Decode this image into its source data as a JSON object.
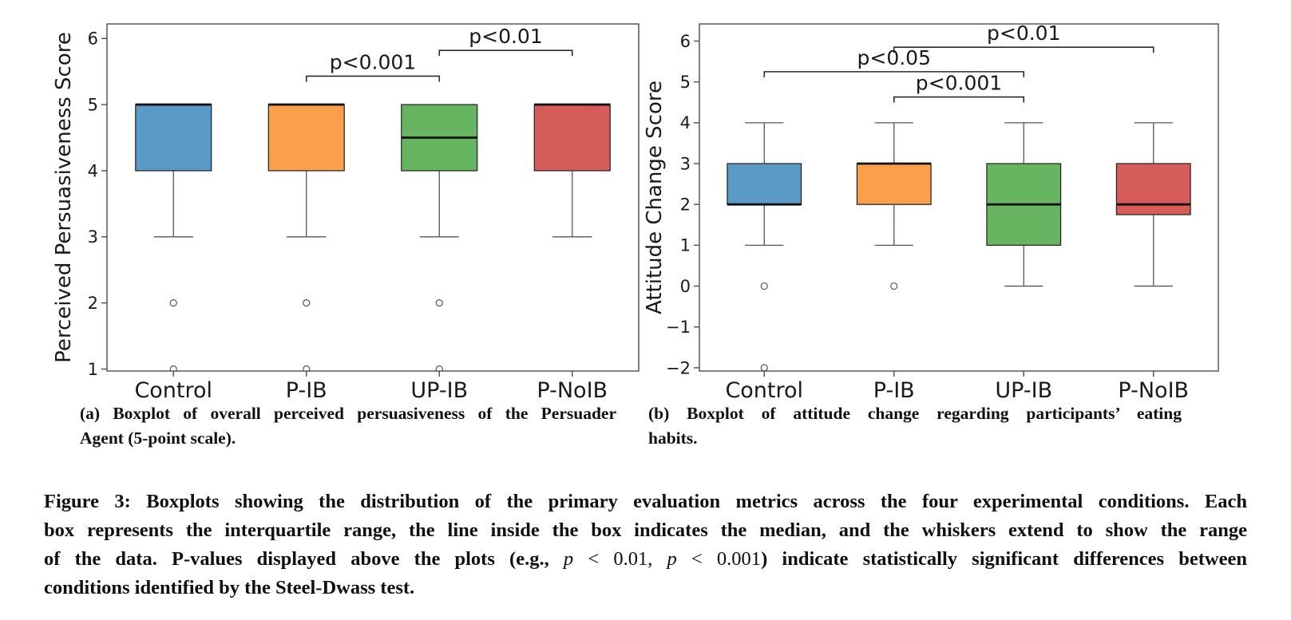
{
  "colors": {
    "blue": "#5b99c6",
    "orange": "#fba04a",
    "green": "#67b561",
    "red": "#d65c5a",
    "box_edge": "#2b2b2b",
    "median": "#111111",
    "whisker": "#555555",
    "frame": "#4d4d4d",
    "text": "#1a1a1a",
    "bracket": "#2a2a2a"
  },
  "chart_data": [
    {
      "type": "boxplot",
      "title": "",
      "ylabel": "Perceived Persuasiveness Score",
      "xlabel": "",
      "ylim": [
        0.97,
        6.22
      ],
      "yticks": [
        1,
        2,
        3,
        4,
        5,
        6
      ],
      "grid": false,
      "categories": [
        "Control",
        "P-IB",
        "UP-IB",
        "P-NoIB"
      ],
      "series": [
        {
          "name": "Control",
          "color_key": "blue",
          "q1": 4,
          "median": 5,
          "q3": 5,
          "whisker_low": 3,
          "whisker_high": 5,
          "outliers": [
            2,
            1
          ]
        },
        {
          "name": "P-IB",
          "color_key": "orange",
          "q1": 4,
          "median": 5,
          "q3": 5,
          "whisker_low": 3,
          "whisker_high": 5,
          "outliers": [
            2,
            1
          ]
        },
        {
          "name": "UP-IB",
          "color_key": "green",
          "q1": 4,
          "median": 4.5,
          "q3": 5,
          "whisker_low": 3,
          "whisker_high": 5,
          "outliers": [
            2,
            1
          ]
        },
        {
          "name": "P-NoIB",
          "color_key": "red",
          "q1": 4,
          "median": 5,
          "q3": 5,
          "whisker_low": 3,
          "whisker_high": 5,
          "outliers": []
        }
      ],
      "significance": [
        {
          "from": "P-IB",
          "to": "UP-IB",
          "y": 5.43,
          "label": "p<0.001"
        },
        {
          "from": "UP-IB",
          "to": "P-NoIB",
          "y": 5.82,
          "label": "p<0.01"
        }
      ]
    },
    {
      "type": "boxplot",
      "title": "",
      "ylabel": "Attitude Change Score",
      "xlabel": "",
      "ylim": [
        -2.08,
        6.42
      ],
      "yticks": [
        -2,
        -1,
        0,
        1,
        2,
        3,
        4,
        5,
        6
      ],
      "grid": false,
      "categories": [
        "Control",
        "P-IB",
        "UP-IB",
        "P-NoIB"
      ],
      "series": [
        {
          "name": "Control",
          "color_key": "blue",
          "q1": 2,
          "median": 2,
          "q3": 3,
          "whisker_low": 1,
          "whisker_high": 4,
          "outliers": [
            0,
            -2
          ]
        },
        {
          "name": "P-IB",
          "color_key": "orange",
          "q1": 2,
          "median": 3,
          "q3": 3,
          "whisker_low": 1,
          "whisker_high": 4,
          "outliers": [
            0
          ]
        },
        {
          "name": "UP-IB",
          "color_key": "green",
          "q1": 1,
          "median": 2,
          "q3": 3,
          "whisker_low": 0,
          "whisker_high": 4,
          "outliers": []
        },
        {
          "name": "P-NoIB",
          "color_key": "red",
          "q1": 1.75,
          "median": 2,
          "q3": 3,
          "whisker_low": 0,
          "whisker_high": 4,
          "outliers": []
        }
      ],
      "significance": [
        {
          "from": "P-IB",
          "to": "P-NoIB",
          "y": 5.85,
          "label": "p<0.01"
        },
        {
          "from": "Control",
          "to": "UP-IB",
          "y": 5.25,
          "label": "p<0.05"
        },
        {
          "from": "P-IB",
          "to": "UP-IB",
          "y": 4.63,
          "label": "p<0.001"
        }
      ]
    }
  ],
  "captions": {
    "a_line1": "(a) Boxplot of overall perceived persuasiveness of the Persuader",
    "a_line2": "Agent (5-point scale).",
    "b_line1": "(b) Boxplot of attitude change regarding participants’ eating",
    "b_line2": "habits."
  },
  "figure_caption": {
    "line1": "Figure 3: Boxplots showing the distribution of the primary evaluation metrics across the four experimental conditions. Each",
    "line2": "box represents the interquartile range, the line inside the box indicates the median, and the whiskers extend to show the range",
    "line3_pre": "of the data. P-values displayed above the plots (e.g., ",
    "line3_math1_var": "p",
    "line3_math1_rest": " < 0.01, ",
    "line3_math2_var": "p",
    "line3_math2_rest": " < 0.001",
    "line3_post": ") indicate statistically significant differences between",
    "line4": "conditions identified by the Steel-Dwass test."
  }
}
